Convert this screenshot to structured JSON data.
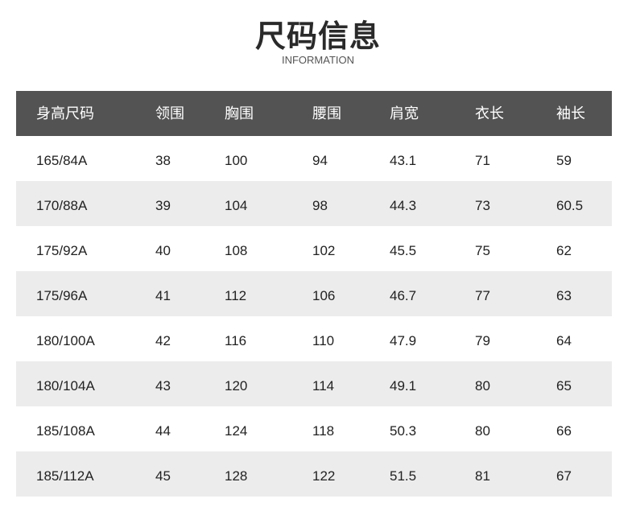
{
  "header": {
    "title": "尺码信息",
    "subtitle": "INFORMATION"
  },
  "table": {
    "columns": [
      "身高尺码",
      "领围",
      "胸围",
      "腰围",
      "肩宽",
      "衣长",
      "袖长"
    ],
    "rows": [
      [
        "165/84A",
        "38",
        "100",
        "94",
        "43.1",
        "71",
        "59"
      ],
      [
        "170/88A",
        "39",
        "104",
        "98",
        "44.3",
        "73",
        "60.5"
      ],
      [
        "175/92A",
        "40",
        "108",
        "102",
        "45.5",
        "75",
        "62"
      ],
      [
        "175/96A",
        "41",
        "112",
        "106",
        "46.7",
        "77",
        "63"
      ],
      [
        "180/100A",
        "42",
        "116",
        "110",
        "47.9",
        "79",
        "64"
      ],
      [
        "180/104A",
        "43",
        "120",
        "114",
        "49.1",
        "80",
        "65"
      ],
      [
        "185/108A",
        "44",
        "124",
        "118",
        "50.3",
        "80",
        "66"
      ],
      [
        "185/112A",
        "45",
        "128",
        "122",
        "51.5",
        "81",
        "67"
      ]
    ],
    "colors": {
      "header_bg": "#535353",
      "alt_row_bg": "#ececec"
    }
  }
}
